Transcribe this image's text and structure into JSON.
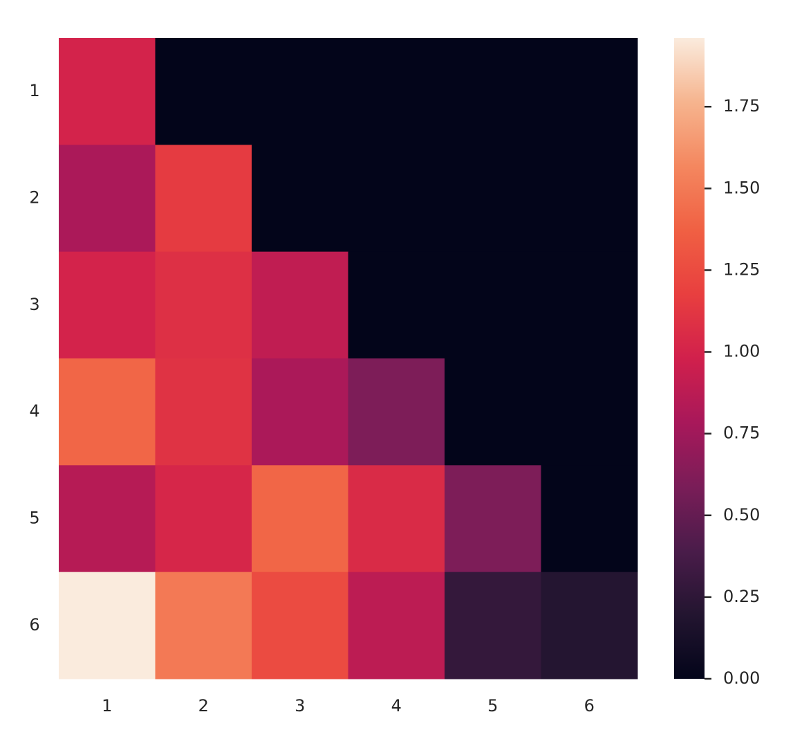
{
  "chart_data": {
    "type": "heatmap",
    "x_categories": [
      "1",
      "2",
      "3",
      "4",
      "5",
      "6"
    ],
    "y_categories": [
      "1",
      "2",
      "3",
      "4",
      "5",
      "6"
    ],
    "values": [
      [
        1.0,
        0,
        0,
        0,
        0,
        0
      ],
      [
        0.8,
        1.15,
        0,
        0,
        0,
        0
      ],
      [
        1.0,
        1.08,
        0.9,
        0,
        0,
        0
      ],
      [
        1.4,
        1.1,
        0.8,
        0.6,
        0,
        0
      ],
      [
        0.85,
        1.02,
        1.4,
        1.05,
        0.6,
        0
      ],
      [
        1.96,
        1.5,
        1.25,
        0.88,
        0.28,
        0.2
      ]
    ],
    "colormap": [
      "#03051a",
      "#231530",
      "#4a1c4a",
      "#7a1d58",
      "#a8185a",
      "#d1204c",
      "#e83f3f",
      "#f06043",
      "#f4875f",
      "#f6b48e",
      "#faebdd"
    ],
    "zlim": [
      0,
      1.96
    ],
    "zticks": [
      {
        "value": 0,
        "label": "0.00"
      },
      {
        "value": 0.25,
        "label": "0.25"
      },
      {
        "value": 0.5,
        "label": "0.50"
      },
      {
        "value": 0.75,
        "label": "0.75"
      },
      {
        "value": 1.0,
        "label": "1.00"
      },
      {
        "value": 1.25,
        "label": "1.25"
      },
      {
        "value": 1.5,
        "label": "1.50"
      },
      {
        "value": 1.75,
        "label": "1.75"
      }
    ]
  }
}
